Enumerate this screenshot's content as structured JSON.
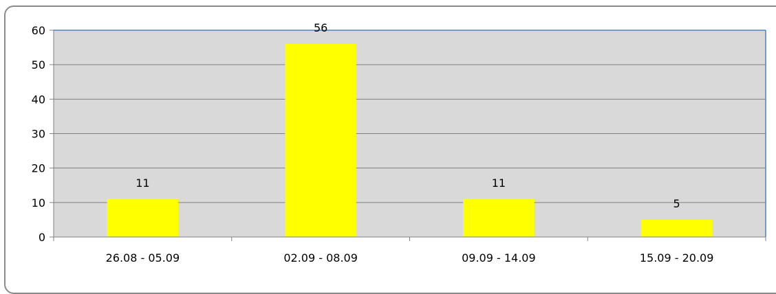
{
  "chart_data": {
    "type": "bar",
    "title": "",
    "xlabel": "",
    "ylabel": "",
    "categories": [
      "26.08 - 05.09",
      "02.09 - 08.09",
      "09.09 - 14.09",
      "15.09 - 20.09"
    ],
    "values": [
      11,
      56,
      11,
      5
    ],
    "data_labels": [
      "11",
      "56",
      "11",
      "5"
    ],
    "ylim": [
      0,
      60
    ],
    "yticks": [
      0,
      10,
      20,
      30,
      40,
      50,
      60
    ],
    "ytick_labels": [
      "0",
      "10",
      "20",
      "30",
      "40",
      "50",
      "60"
    ],
    "grid": true,
    "legend": "none",
    "colors": {
      "bar": "#ffff00",
      "plot_background": "#d9d9d9",
      "gridline": "#7f7f7f",
      "plot_border_top_right": "#4f81bd",
      "axis": "#7f7f7f"
    }
  }
}
